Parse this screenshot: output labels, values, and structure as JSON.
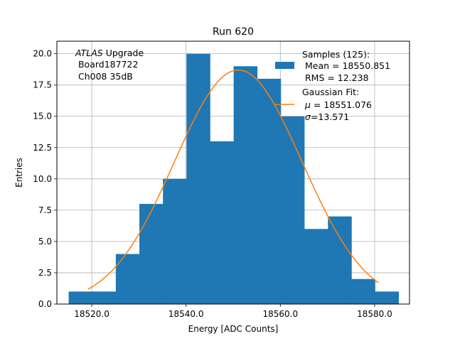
{
  "chart_data": {
    "type": "histogram",
    "title": "Run 620",
    "xlabel": "Energy [ADC Counts]",
    "ylabel": "Entries",
    "xlim": [
      18512.6,
      18587.4
    ],
    "ylim": [
      0,
      21
    ],
    "grid": true,
    "x_ticks": [
      18520.0,
      18540.0,
      18560.0,
      18580.0
    ],
    "x_tick_labels": [
      "18520.0",
      "18540.0",
      "18560.0",
      "18580.0"
    ],
    "y_ticks": [
      0,
      2.5,
      5,
      7.5,
      10,
      12.5,
      15,
      17.5,
      20
    ],
    "y_tick_labels": [
      "0.0",
      "2.5",
      "5.0",
      "7.5",
      "10.0",
      "12.5",
      "15.0",
      "17.5",
      "20.0"
    ],
    "bins": {
      "edges": [
        18515.1,
        18520.1,
        18525.1,
        18530.1,
        18535.1,
        18540.1,
        18545.1,
        18550.1,
        18555.1,
        18560.1,
        18565.1,
        18570.1,
        18575.1,
        18580.1,
        18585.1
      ],
      "counts": [
        1,
        1,
        4,
        8,
        10,
        20,
        13,
        19,
        18,
        15,
        6,
        7,
        2,
        1
      ]
    },
    "fit": {
      "type": "gaussian",
      "mu": 18551.076,
      "sigma": 13.571,
      "amplitude": 18.7,
      "x_range": [
        18519.2,
        18580.8
      ]
    },
    "annotation": {
      "line1_italic": "ATLAS",
      "line1_rest": " Upgrade",
      "line2": " Board187722",
      "line3": " Ch008 35dB"
    },
    "legend": {
      "position": "top-right",
      "hist_lines": [
        "Samples (125):",
        " Mean = 18550.851",
        " RMS = 12.238"
      ],
      "fit_title": "Gaussian Fit:",
      "fit_mu_sym": "μ",
      "fit_mu_val": " = 18551.076",
      "fit_sigma_sym": "σ",
      "fit_sigma_val": "=13.571"
    },
    "colors": {
      "bars": "#1f77b4",
      "fit": "#ff7f0e",
      "grid": "#b0b0b0"
    }
  }
}
